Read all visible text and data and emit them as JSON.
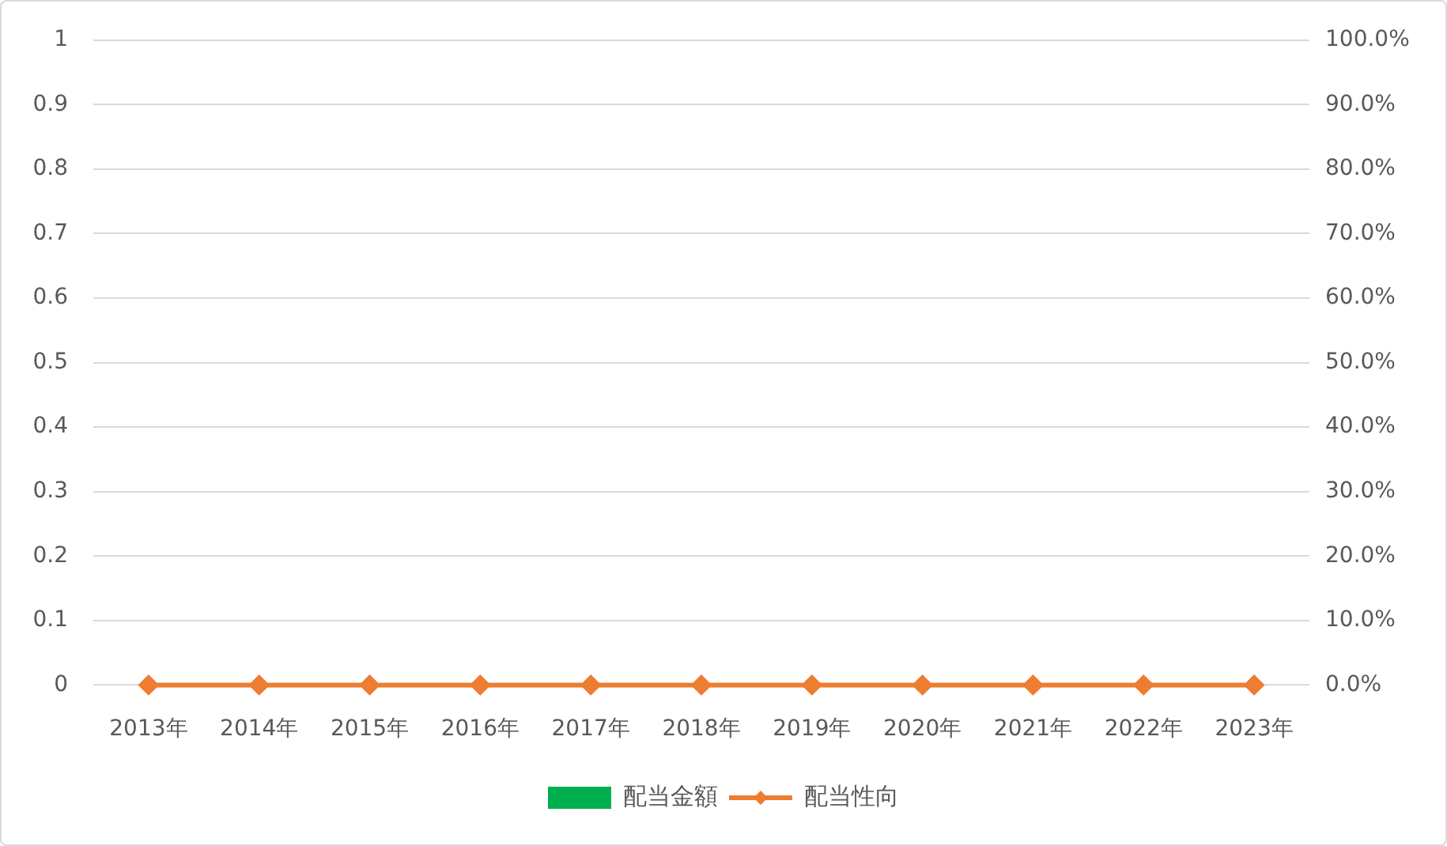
{
  "chart_data": {
    "type": "bar",
    "categories": [
      "2013年",
      "2014年",
      "2015年",
      "2016年",
      "2017年",
      "2018年",
      "2019年",
      "2020年",
      "2021年",
      "2022年",
      "2023年"
    ],
    "series": [
      {
        "name": "配当金額",
        "color": "#00b050",
        "values": [
          0,
          0,
          0,
          0,
          0,
          0,
          0,
          0,
          0,
          0,
          0
        ]
      },
      {
        "name": "配当性向",
        "type": "line",
        "axis": "y2",
        "color": "#ed7d31",
        "values": [
          0,
          0,
          0,
          0,
          0,
          0,
          0,
          0,
          0,
          0,
          0
        ]
      }
    ],
    "ylim": [
      0,
      1
    ],
    "yticks": [
      0,
      0.1,
      0.2,
      0.3,
      0.4,
      0.5,
      0.6,
      0.7,
      0.8,
      0.9,
      1
    ],
    "y2lim": [
      0,
      100
    ],
    "y2ticks": [
      {
        "value": 0,
        "label": "0.0%"
      },
      {
        "value": 10,
        "label": "10.0%"
      },
      {
        "value": 20,
        "label": "20.0%"
      },
      {
        "value": 30,
        "label": "30.0%"
      },
      {
        "value": 40,
        "label": "40.0%"
      },
      {
        "value": 50,
        "label": "50.0%"
      },
      {
        "value": 60,
        "label": "60.0%"
      },
      {
        "value": 70,
        "label": "70.0%"
      },
      {
        "value": 80,
        "label": "80.0%"
      },
      {
        "value": 90,
        "label": "90.0%"
      },
      {
        "value": 100,
        "label": "100.0%"
      }
    ],
    "grid": "y",
    "legend": "bottom",
    "marker": "diamond"
  }
}
